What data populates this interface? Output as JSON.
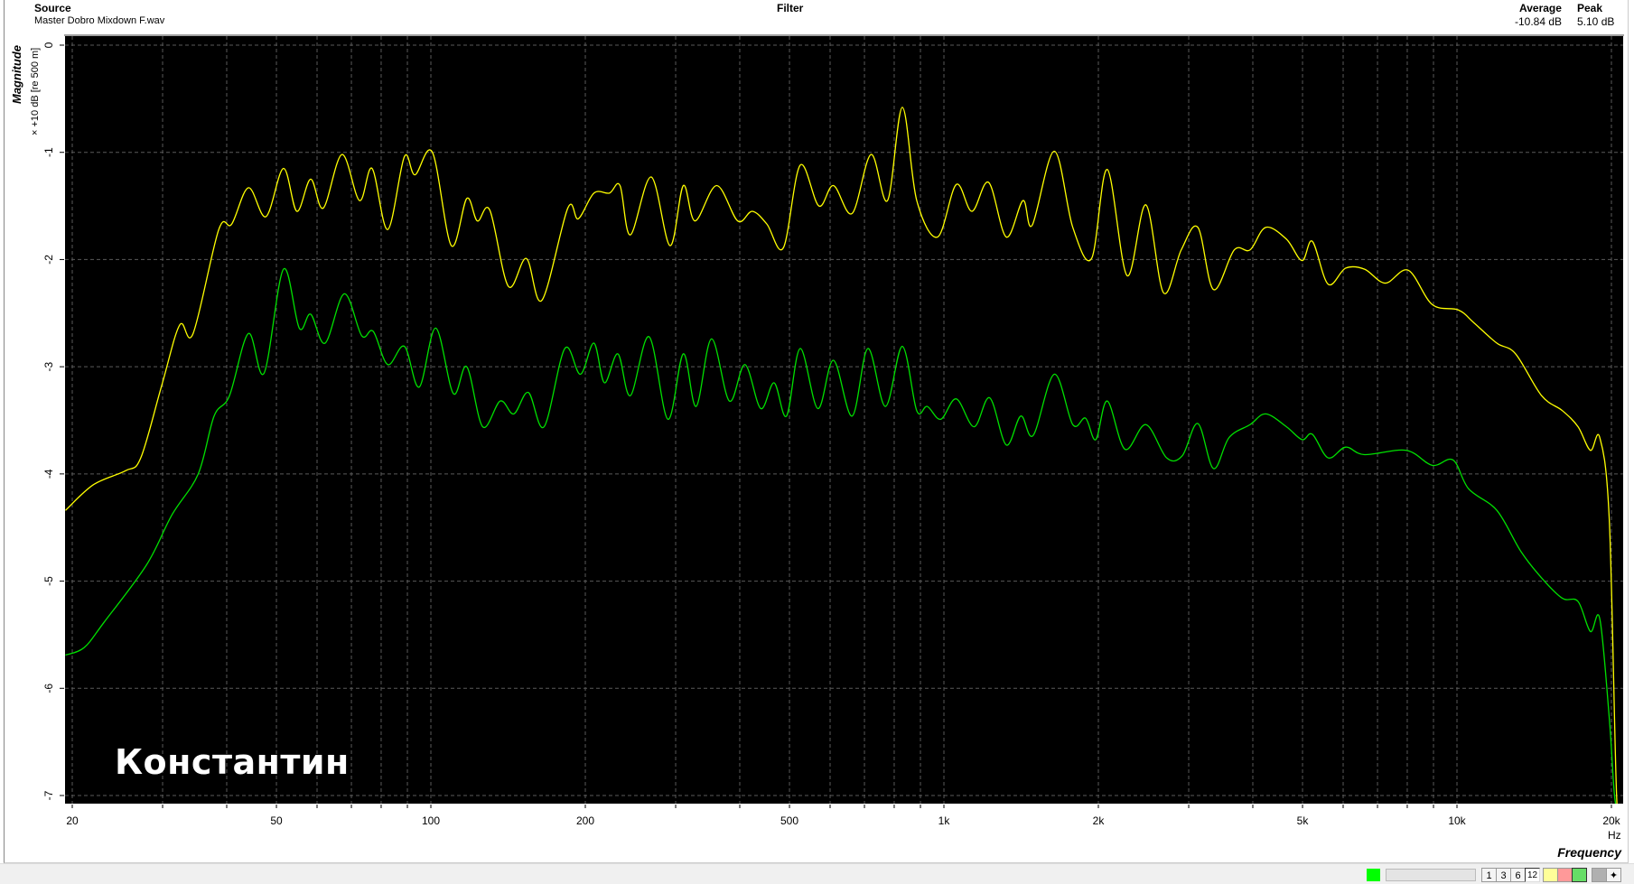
{
  "header": {
    "source_label": "Source",
    "source_file": "Master Dobro Mixdown F.wav",
    "filter_label": "Filter",
    "average_label": "Average",
    "average_value": "-10.84 dB",
    "peak_label": "Peak",
    "peak_value": "5.10 dB"
  },
  "watermark": "Константин",
  "statusbar": {
    "indicator_color": "#00ff00",
    "smoothing_buttons": [
      "1",
      "3",
      "6",
      "12"
    ],
    "selected_smoothing": "12",
    "swatch_colors": [
      "#ffff99",
      "#ff9999",
      "#66dd66",
      "#b0b0b0"
    ],
    "arrow_icon": "move-icon"
  },
  "chart_data": {
    "type": "line",
    "xlabel": "Frequency",
    "xunit": "Hz",
    "ylabel": "Magnitude",
    "yunit": "× +10 dB [re 500 m]",
    "xscale": "log",
    "xlim": [
      19.4,
      20900
    ],
    "ylim": [
      -7.1,
      0.1
    ],
    "grid": true,
    "background": "#000000",
    "xticks": [
      "20",
      "50",
      "100",
      "200",
      "500",
      "1k",
      "2k",
      "5k",
      "10k",
      "20k"
    ],
    "xtick_values": [
      20,
      50,
      100,
      200,
      500,
      1000,
      2000,
      5000,
      10000,
      20000
    ],
    "yticks": [
      "0",
      "-1",
      "-2",
      "-3",
      "-4",
      "-5",
      "-6",
      "-7"
    ],
    "ytick_values": [
      0,
      -1,
      -2,
      -3,
      -4,
      -5,
      -6,
      -7
    ],
    "series": [
      {
        "color": "#ffff00",
        "x": [
          19.4,
          22.0,
          25.4,
          27.2,
          29.9,
          32.4,
          34.4,
          38.6,
          40.9,
          44.1,
          47.7,
          51.6,
          54.8,
          58.3,
          61.7,
          67.1,
          72.6,
          76.8,
          82.4,
          88.8,
          93.1,
          100.7,
          109.6,
          117.5,
          123.2,
          130.3,
          141.6,
          153.5,
          164.6,
          184.9,
          193.8,
          207.9,
          222.9,
          233.7,
          244.8,
          268.8,
          292.5,
          310.5,
          327.3,
          360.6,
          396.3,
          423,
          451.9,
          486.5,
          524.6,
          570.4,
          609.1,
          662.3,
          720.9,
          776.3,
          829.7,
          885.2,
          972,
          1057,
          1134,
          1222,
          1323,
          1426,
          1486,
          1641,
          1783,
          1940,
          2082,
          2275,
          2475,
          2679,
          2901,
          3126,
          3353,
          3681,
          3951,
          4238,
          4652,
          4989,
          5225,
          5609,
          6068,
          6605,
          7248,
          8036,
          8948,
          10060,
          10790,
          11960,
          13010,
          14620,
          16050,
          17220,
          18200,
          18980,
          19810,
          20470,
          20900
        ],
        "y": [
          -4.34,
          -4.1,
          -3.97,
          -3.85,
          -3.17,
          -2.61,
          -2.69,
          -1.72,
          -1.67,
          -1.33,
          -1.6,
          -1.15,
          -1.55,
          -1.25,
          -1.52,
          -1.02,
          -1.45,
          -1.15,
          -1.72,
          -1.04,
          -1.21,
          -1.0,
          -1.87,
          -1.43,
          -1.64,
          -1.54,
          -2.25,
          -1.99,
          -2.38,
          -1.52,
          -1.62,
          -1.38,
          -1.38,
          -1.31,
          -1.77,
          -1.23,
          -1.87,
          -1.31,
          -1.64,
          -1.31,
          -1.64,
          -1.55,
          -1.67,
          -1.89,
          -1.12,
          -1.5,
          -1.31,
          -1.57,
          -1.02,
          -1.45,
          -0.58,
          -1.45,
          -1.79,
          -1.3,
          -1.55,
          -1.28,
          -1.79,
          -1.45,
          -1.68,
          -0.99,
          -1.7,
          -1.99,
          -1.16,
          -2.15,
          -1.49,
          -2.31,
          -1.91,
          -1.7,
          -2.28,
          -1.91,
          -1.91,
          -1.7,
          -1.81,
          -2.01,
          -1.83,
          -2.23,
          -2.08,
          -2.09,
          -2.22,
          -2.1,
          -2.42,
          -2.47,
          -2.59,
          -2.78,
          -2.88,
          -3.27,
          -3.41,
          -3.56,
          -3.78,
          -3.66,
          -4.43,
          -7.0,
          -7.2
        ]
      },
      {
        "color": "#00e000",
        "x": [
          19.4,
          21.1,
          23.1,
          27.9,
          31.3,
          35.2,
          37.8,
          40.5,
          44.1,
          47.3,
          51.6,
          55.4,
          58.3,
          62.2,
          67.8,
          73.3,
          77.2,
          82.4,
          88.8,
          94.9,
          102.2,
          110.6,
          117.5,
          126.2,
          136.5,
          145.1,
          154.9,
          166.2,
          182.4,
          195.6,
          207.9,
          217.9,
          231.5,
          244.8,
          266.3,
          289.7,
          310.5,
          328.9,
          352.4,
          381.8,
          409.4,
          439.5,
          466.7,
          493.5,
          524.6,
          567.8,
          609.1,
          662.3,
          710.9,
          769.2,
          829.7,
          885.2,
          927.9,
          985.9,
          1057,
          1145,
          1228,
          1323,
          1412,
          1493,
          1641,
          1783,
          1888,
          1977,
          2082,
          2254,
          2475,
          2717,
          2915,
          3126,
          3353,
          3597,
          3951,
          4238,
          4652,
          4989,
          5225,
          5609,
          6068,
          6605,
          7962,
          8948,
          9825,
          10540,
          11960,
          13310,
          14620,
          16050,
          17220,
          18200,
          18980,
          19810,
          20280,
          20700
        ],
        "y": [
          -5.69,
          -5.62,
          -5.38,
          -4.85,
          -4.38,
          -4.0,
          -3.46,
          -3.27,
          -2.69,
          -3.06,
          -2.09,
          -2.64,
          -2.51,
          -2.78,
          -2.32,
          -2.71,
          -2.67,
          -2.98,
          -2.81,
          -3.19,
          -2.64,
          -3.25,
          -3.0,
          -3.56,
          -3.32,
          -3.44,
          -3.24,
          -3.56,
          -2.83,
          -3.07,
          -2.78,
          -3.15,
          -2.88,
          -3.27,
          -2.72,
          -3.49,
          -2.88,
          -3.37,
          -2.74,
          -3.32,
          -2.98,
          -3.39,
          -3.15,
          -3.46,
          -2.83,
          -3.39,
          -2.94,
          -3.46,
          -2.83,
          -3.37,
          -2.81,
          -3.41,
          -3.37,
          -3.49,
          -3.3,
          -3.56,
          -3.29,
          -3.73,
          -3.46,
          -3.64,
          -3.07,
          -3.54,
          -3.48,
          -3.68,
          -3.32,
          -3.77,
          -3.54,
          -3.85,
          -3.83,
          -3.53,
          -3.95,
          -3.66,
          -3.54,
          -3.44,
          -3.56,
          -3.68,
          -3.63,
          -3.85,
          -3.75,
          -3.82,
          -3.78,
          -3.92,
          -3.87,
          -4.14,
          -4.34,
          -4.72,
          -4.97,
          -5.16,
          -5.19,
          -5.47,
          -5.35,
          -6.28,
          -7.0,
          -7.2
        ]
      }
    ]
  }
}
